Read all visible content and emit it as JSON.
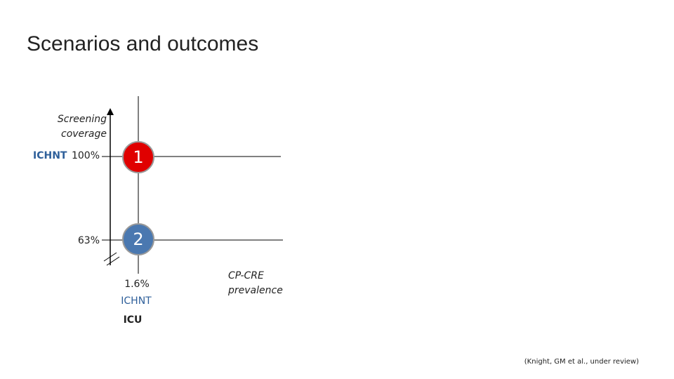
{
  "header": {
    "title": "Scenarios and outcomes"
  },
  "y_axis": {
    "label_lines": [
      "Screening",
      "coverage"
    ],
    "levels": [
      {
        "site": "ICHNT",
        "label": "100%"
      },
      {
        "label": "63%"
      }
    ]
  },
  "nodes": [
    {
      "label": "1"
    },
    {
      "label": "2"
    }
  ],
  "x_axis": {
    "label_lines": [
      "CP-CRE",
      "prevalence"
    ],
    "levels": [
      {
        "label": "1.6%",
        "site": "ICHNT"
      }
    ],
    "extra_label": "ICU"
  },
  "citation": "(Knight, GM et al., under review)"
}
